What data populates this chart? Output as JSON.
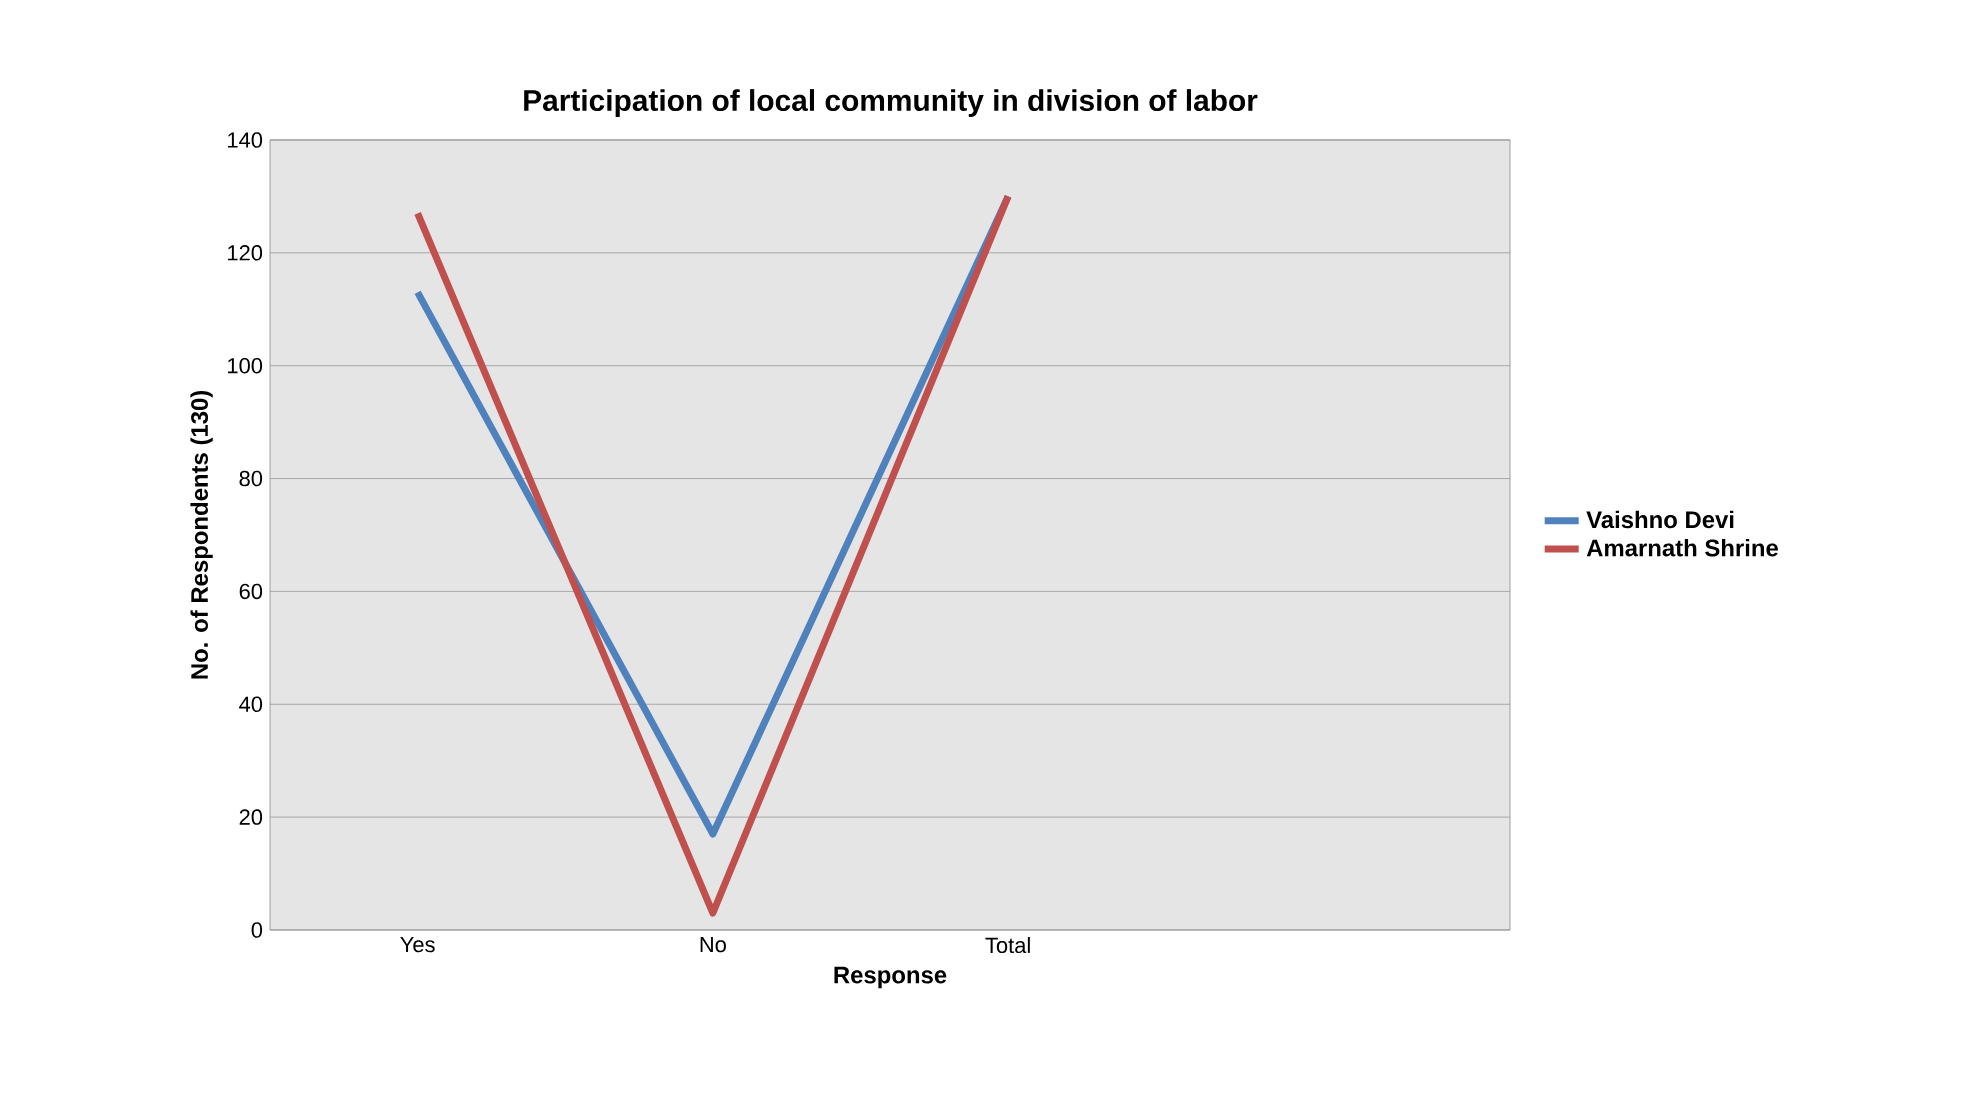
{
  "chart_data": {
    "type": "line",
    "title": "Participation of local community in division of labor",
    "xlabel": "Response",
    "ylabel": "No. of Respondents (130)",
    "categories": [
      "Yes",
      "No",
      "Total",
      null
    ],
    "series": [
      {
        "name": "Vaishno Devi",
        "color": "#4f81bd",
        "values": [
          113,
          17,
          130,
          null
        ]
      },
      {
        "name": "Amarnath Shrine",
        "color": "#c0504d",
        "values": [
          127,
          3,
          130,
          null
        ]
      }
    ],
    "ylim": [
      0,
      140
    ],
    "yticks": [
      0,
      20,
      40,
      60,
      80,
      100,
      120,
      140
    ],
    "grid": "y",
    "legend": "right",
    "marker": "none",
    "line_style": "solid"
  }
}
